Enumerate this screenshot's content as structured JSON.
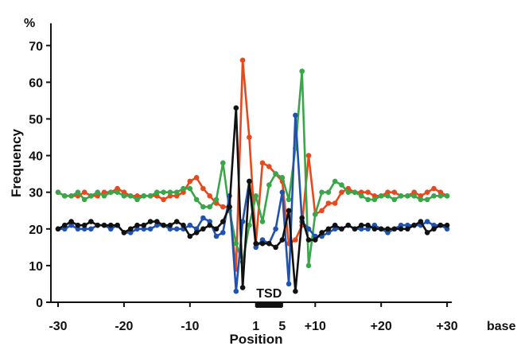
{
  "chart_data": {
    "type": "line",
    "xlabel": "Position",
    "ylabel": "Frequency",
    "y_unit": "%",
    "ylim": [
      0,
      70
    ],
    "xlim": [
      -30,
      31
    ],
    "y_ticks": [
      0,
      10,
      20,
      30,
      40,
      50,
      60,
      70
    ],
    "x_ticks": [
      {
        "value": -30,
        "label": "-30"
      },
      {
        "value": -20,
        "label": "-20"
      },
      {
        "value": -10,
        "label": "-10"
      },
      {
        "value": 1,
        "label": "1"
      },
      {
        "value": 5,
        "label": "5"
      },
      {
        "value": 10,
        "label": "+10"
      },
      {
        "value": 20,
        "label": "+20"
      },
      {
        "value": 30,
        "label": "+30"
      }
    ],
    "x_unit": "base",
    "annotation": {
      "label": "TSD",
      "from": 1,
      "to": 5
    },
    "x": [
      -30,
      -29,
      -28,
      -27,
      -26,
      -25,
      -24,
      -23,
      -22,
      -21,
      -20,
      -19,
      -18,
      -17,
      -16,
      -15,
      -14,
      -13,
      -12,
      -11,
      -10,
      -9,
      -8,
      -7,
      -6,
      -5,
      -4,
      -3,
      -2,
      -1,
      1,
      2,
      3,
      4,
      5,
      6,
      7,
      8,
      9,
      10,
      11,
      12,
      13,
      14,
      15,
      16,
      17,
      18,
      19,
      20,
      21,
      22,
      23,
      24,
      25,
      26,
      27,
      28,
      29,
      30
    ],
    "series": [
      {
        "color": "#e8491c",
        "values": [
          30,
          29,
          29,
          29,
          30,
          29,
          29,
          30,
          30,
          31,
          30,
          29,
          29,
          29,
          29,
          29,
          28,
          29,
          29,
          30,
          33,
          34,
          31,
          29,
          27,
          26,
          26,
          9,
          66,
          45,
          16,
          38,
          37,
          35,
          33,
          16,
          17,
          21,
          40,
          24,
          25,
          27,
          27,
          30,
          31,
          30,
          30,
          30,
          29,
          29,
          30,
          30,
          29,
          29,
          30,
          29,
          30,
          31,
          30,
          29
        ]
      },
      {
        "color": "#3aa64a",
        "values": [
          30,
          29,
          29,
          30,
          28,
          29,
          30,
          29,
          30,
          30,
          29,
          29,
          28,
          29,
          29,
          30,
          30,
          30,
          30,
          31,
          31,
          28,
          26,
          26,
          28,
          38,
          25,
          16,
          11,
          21,
          29,
          22,
          32,
          35,
          34,
          28,
          42,
          63,
          10,
          24,
          30,
          30,
          33,
          32,
          30,
          30,
          29,
          28,
          28,
          29,
          29,
          28,
          29,
          29,
          29,
          28,
          28,
          29,
          29,
          29
        ]
      },
      {
        "color": "#2252b0",
        "values": [
          20,
          20,
          21,
          20,
          20,
          20,
          21,
          21,
          20,
          21,
          19,
          19,
          20,
          20,
          20,
          21,
          21,
          20,
          20,
          20,
          21,
          20,
          23,
          22,
          18,
          19,
          29,
          3,
          22,
          33,
          15,
          17,
          16,
          20,
          30,
          5,
          51,
          22,
          20,
          18,
          18,
          19,
          20,
          20,
          21,
          20,
          20,
          20,
          21,
          20,
          19,
          20,
          21,
          21,
          21,
          21,
          22,
          21,
          21,
          20
        ]
      },
      {
        "color": "#111111",
        "values": [
          20,
          21,
          22,
          21,
          21,
          22,
          21,
          21,
          21,
          21,
          19,
          20,
          21,
          21,
          22,
          22,
          21,
          21,
          22,
          21,
          18,
          19,
          20,
          21,
          20,
          22,
          26,
          53,
          4,
          33,
          16,
          16,
          16,
          15,
          17,
          25,
          3,
          23,
          17,
          17,
          19,
          20,
          21,
          20,
          21,
          20,
          21,
          21,
          20,
          20,
          20,
          20,
          20,
          20,
          21,
          22,
          19,
          20,
          21,
          21
        ]
      }
    ]
  }
}
